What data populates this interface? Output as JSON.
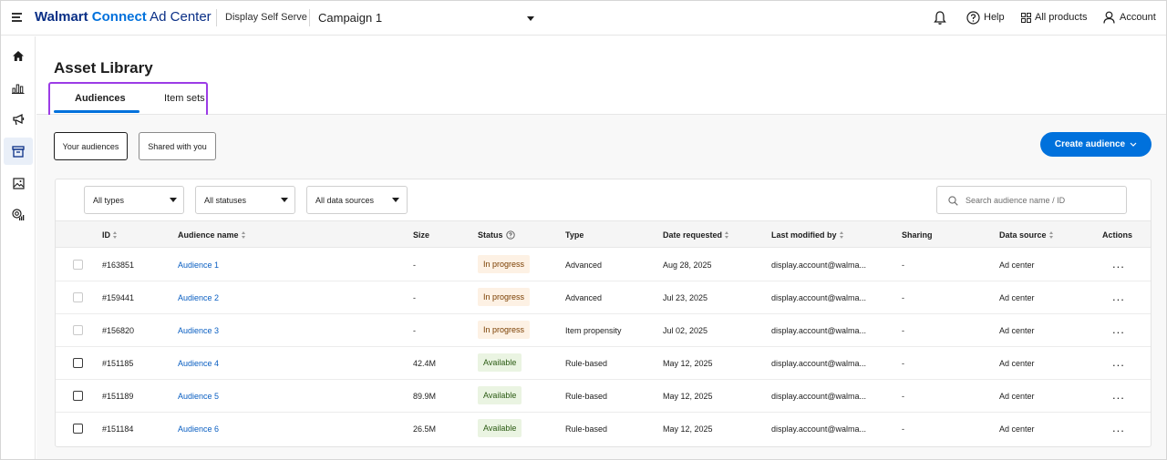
{
  "topbar": {
    "brand_walmart": "Walmart",
    "brand_connect": "Connect",
    "brand_adcenter": "Ad Center",
    "sub_product": "Display Self Serve",
    "campaign": "Campaign 1",
    "help": "Help",
    "all_products": "All products",
    "account": "Account"
  },
  "sidebar": {
    "items": [
      {
        "icon": "home-icon"
      },
      {
        "icon": "bar-chart-icon"
      },
      {
        "icon": "megaphone-icon"
      },
      {
        "icon": "archive-icon",
        "active": true
      },
      {
        "icon": "image-icon"
      },
      {
        "icon": "target-signal-icon"
      }
    ]
  },
  "page": {
    "title": "Asset Library",
    "tabs": [
      {
        "label": "Audiences",
        "active": true
      },
      {
        "label": "Item sets",
        "active": false
      }
    ]
  },
  "toolbar": {
    "your_audiences": "Your audiences",
    "shared_with_you": "Shared with you",
    "create_audience": "Create audience"
  },
  "filters": {
    "types": "All types",
    "statuses": "All statuses",
    "sources": "All data sources",
    "search_placeholder": "Search audience name / ID"
  },
  "table": {
    "columns": [
      "ID",
      "Audience name",
      "Size",
      "Status",
      "Type",
      "Date requested",
      "Last modified by",
      "Sharing",
      "Data source",
      "Actions"
    ],
    "rows": [
      {
        "id": "#163851",
        "name": "Audience 1",
        "size": "-",
        "status": "In progress",
        "type": "Advanced",
        "date": "Aug 28, 2025",
        "modified_by": "display.account@walma...",
        "sharing": "-",
        "source": "Ad center",
        "actions": "..."
      },
      {
        "id": "#159441",
        "name": "Audience 2",
        "size": "-",
        "status": "In progress",
        "type": "Advanced",
        "date": "Jul 23, 2025",
        "modified_by": "display.account@walma...",
        "sharing": "-",
        "source": "Ad center",
        "actions": "..."
      },
      {
        "id": "#156820",
        "name": "Audience 3",
        "size": "-",
        "status": "In progress",
        "type": "Item propensity",
        "date": "Jul 02, 2025",
        "modified_by": "display.account@walma...",
        "sharing": "-",
        "source": "Ad center",
        "actions": "..."
      },
      {
        "id": "#151185",
        "name": "Audience 4",
        "size": "42.4M",
        "status": "Available",
        "type": "Rule-based",
        "date": "May 12, 2025",
        "modified_by": "display.account@walma...",
        "sharing": "-",
        "source": "Ad center",
        "actions": "..."
      },
      {
        "id": "#151189",
        "name": "Audience 5",
        "size": "89.9M",
        "status": "Available",
        "type": "Rule-based",
        "date": "May 12, 2025",
        "modified_by": "display.account@walma...",
        "sharing": "-",
        "source": "Ad center",
        "actions": "..."
      },
      {
        "id": "#151184",
        "name": "Audience 6",
        "size": "26.5M",
        "status": "Available",
        "type": "Rule-based",
        "date": "May 12, 2025",
        "modified_by": "display.account@walma...",
        "sharing": "-",
        "source": "Ad center",
        "actions": "..."
      }
    ]
  },
  "colors": {
    "accent": "#0071dc",
    "highlight": "#9c3ce6",
    "in_progress_bg": "#fdf1e4",
    "available_bg": "#eaf4e2"
  }
}
